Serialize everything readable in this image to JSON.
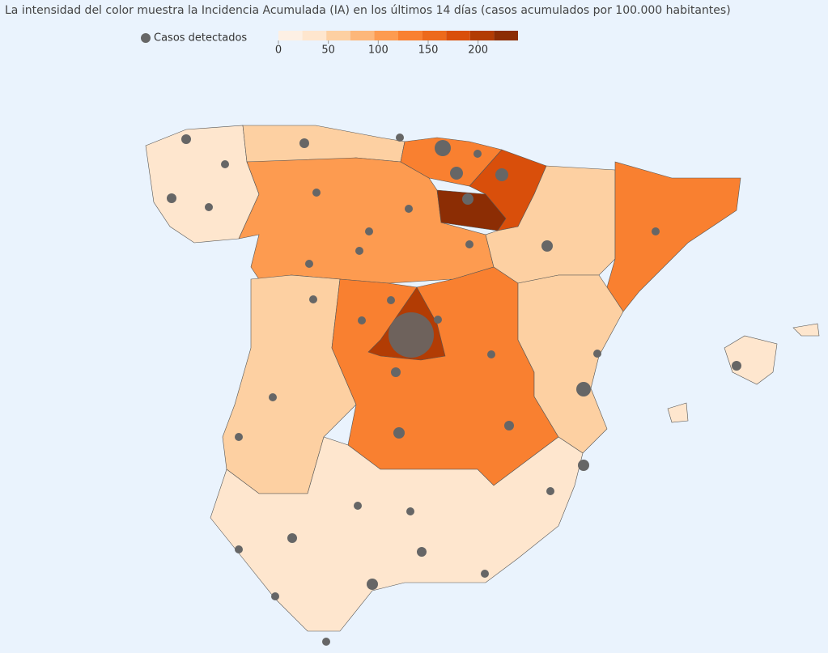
{
  "title": "La intensidad del color muestra la Incidencia Acumulada (IA) en los últimos 14 días (casos acumulados por 100.000 habitantes)",
  "legend": {
    "label": "Casos detectados"
  },
  "color_scale": {
    "range": [
      0,
      240
    ],
    "ticks": [
      0,
      50,
      100,
      150,
      200
    ],
    "colors": [
      "#fdf0e4",
      "#fee6ce",
      "#fdd0a2",
      "#fdb77a",
      "#fd9b50",
      "#f98030",
      "#ed6a1c",
      "#d94f0b",
      "#b23c04",
      "#8c2d04"
    ]
  }
}
